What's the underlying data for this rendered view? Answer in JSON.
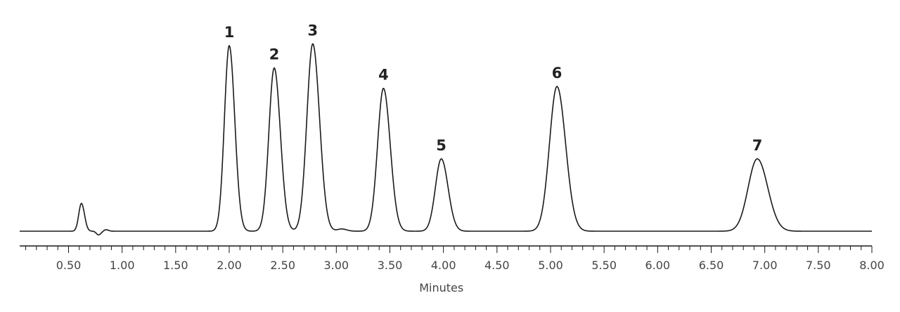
{
  "chart_data": {
    "type": "line",
    "title": "",
    "xlabel": "Minutes",
    "ylabel": "",
    "xlim": [
      0.0,
      8.0
    ],
    "x_ticks": [
      "0.50",
      "1.00",
      "1.50",
      "2.00",
      "2.50",
      "3.00",
      "3.50",
      "4.00",
      "4.50",
      "5.00",
      "5.50",
      "6.00",
      "6.50",
      "7.00",
      "7.50",
      "8.00"
    ],
    "x_tick_values": [
      0.5,
      1.0,
      1.5,
      2.0,
      2.5,
      3.0,
      3.5,
      4.0,
      4.5,
      5.0,
      5.5,
      6.0,
      6.5,
      7.0,
      7.5,
      8.0
    ],
    "minor_tick_step": 0.1,
    "grid": false,
    "line_color": "#1a1a1a",
    "series": [
      {
        "name": "",
        "baseline": 0,
        "ymax": 1.0,
        "minor_features": [
          {
            "x": 0.62,
            "y": 0.15,
            "width": 0.025
          },
          {
            "x": 0.78,
            "y": -0.02,
            "width": 0.02
          },
          {
            "x": 0.85,
            "y": 0.008,
            "width": 0.02
          },
          {
            "x": 3.05,
            "y": 0.012,
            "width": 0.04
          }
        ],
        "peaks": [
          {
            "label": "1",
            "x": 2.0,
            "y": 1.0,
            "width": 0.045
          },
          {
            "label": "2",
            "x": 2.42,
            "y": 0.88,
            "width": 0.05
          },
          {
            "label": "3",
            "x": 2.78,
            "y": 1.01,
            "width": 0.055
          },
          {
            "label": "4",
            "x": 3.44,
            "y": 0.77,
            "width": 0.055
          },
          {
            "label": "5",
            "x": 3.98,
            "y": 0.39,
            "width": 0.055
          },
          {
            "label": "6",
            "x": 5.06,
            "y": 0.78,
            "width": 0.07
          },
          {
            "label": "7",
            "x": 6.93,
            "y": 0.39,
            "width": 0.085
          }
        ]
      }
    ]
  }
}
